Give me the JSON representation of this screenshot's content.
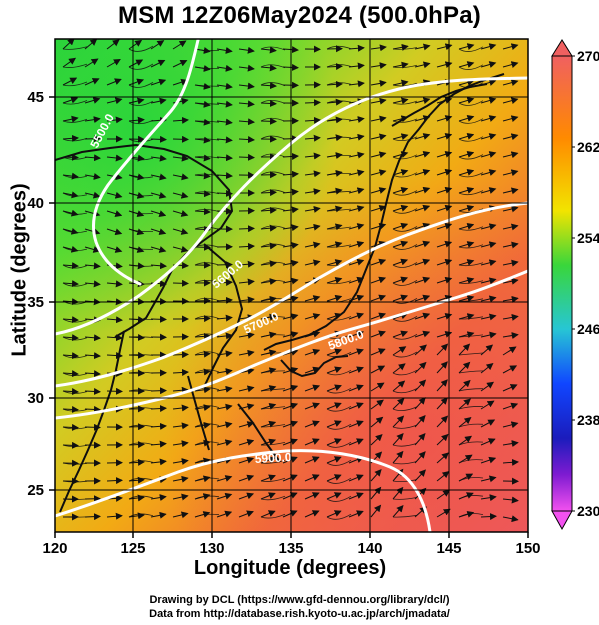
{
  "title": "MSM 12Z06May2024 (500.0hPa)",
  "axes": {
    "xlabel": "Longitude (degrees)",
    "ylabel": "Latitude  (degrees)",
    "x_ticks": [
      "120",
      "125",
      "130",
      "135",
      "140",
      "145",
      "150"
    ],
    "y_ticks": [
      "25",
      "30",
      "35",
      "40",
      "45"
    ],
    "x_range": [
      120,
      150
    ],
    "y_range": [
      22.5,
      47.6
    ]
  },
  "colorbar": {
    "labels": [
      "270",
      "262",
      "254",
      "246",
      "238",
      "230"
    ],
    "range": [
      230,
      270
    ],
    "colors": {
      "top": "#f06060",
      "orange": "#ff8a00",
      "yellow": "#f2e400",
      "green": "#39d63b",
      "cyan": "#27c6d4",
      "blue": "#1046ff",
      "navy": "#1b1cbc",
      "purple": "#7e1bd1",
      "bottom": "#f251ef"
    }
  },
  "contours": [
    {
      "label": "5500.0"
    },
    {
      "label": "5600.0"
    },
    {
      "label": "5700.0"
    },
    {
      "label": "5800.0"
    },
    {
      "label": "5900.0"
    }
  ],
  "credits": {
    "line1": "Drawing by DCL (https://www.gfd-dennou.org/library/dcl/)",
    "line2": "Data from http://database.rish.kyoto-u.ac.jp/arch/jmadata/"
  }
}
